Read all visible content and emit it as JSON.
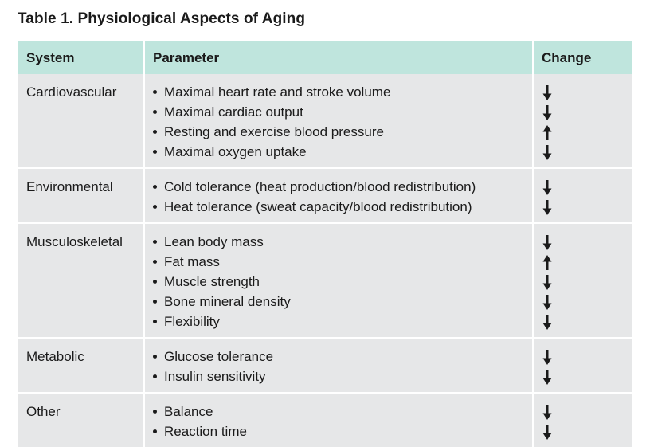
{
  "title": "Table 1. Physiological Aspects of Aging",
  "headers": [
    "System",
    "Parameter",
    "Change"
  ],
  "rows": [
    {
      "system": "Cardiovascular",
      "items": [
        {
          "text": "Maximal heart rate and stroke volume",
          "change": "down"
        },
        {
          "text": "Maximal cardiac output",
          "change": "down"
        },
        {
          "text": "Resting and exercise blood pressure",
          "change": "up"
        },
        {
          "text": "Maximal oxygen uptake",
          "change": "down"
        }
      ]
    },
    {
      "system": "Environmental",
      "items": [
        {
          "text": "Cold tolerance (heat production/blood redistribution)",
          "change": "down"
        },
        {
          "text": "Heat tolerance (sweat capacity/blood redistribution)",
          "change": "down"
        }
      ]
    },
    {
      "system": "Musculoskeletal",
      "items": [
        {
          "text": "Lean body mass",
          "change": "down"
        },
        {
          "text": "Fat mass",
          "change": "up"
        },
        {
          "text": "Muscle strength",
          "change": "down"
        },
        {
          "text": "Bone mineral density",
          "change": "down"
        },
        {
          "text": "Flexibility",
          "change": "down"
        }
      ]
    },
    {
      "system": "Metabolic",
      "items": [
        {
          "text": "Glucose tolerance",
          "change": "down"
        },
        {
          "text": "Insulin sensitivity",
          "change": "down"
        }
      ]
    },
    {
      "system": "Other",
      "items": [
        {
          "text": "Balance",
          "change": "down"
        },
        {
          "text": "Reaction time",
          "change": "down"
        }
      ]
    }
  ],
  "colors": {
    "header_bg": "#bfe5dd",
    "cell_bg": "#e6e7e8",
    "text": "#1a1a1a"
  }
}
